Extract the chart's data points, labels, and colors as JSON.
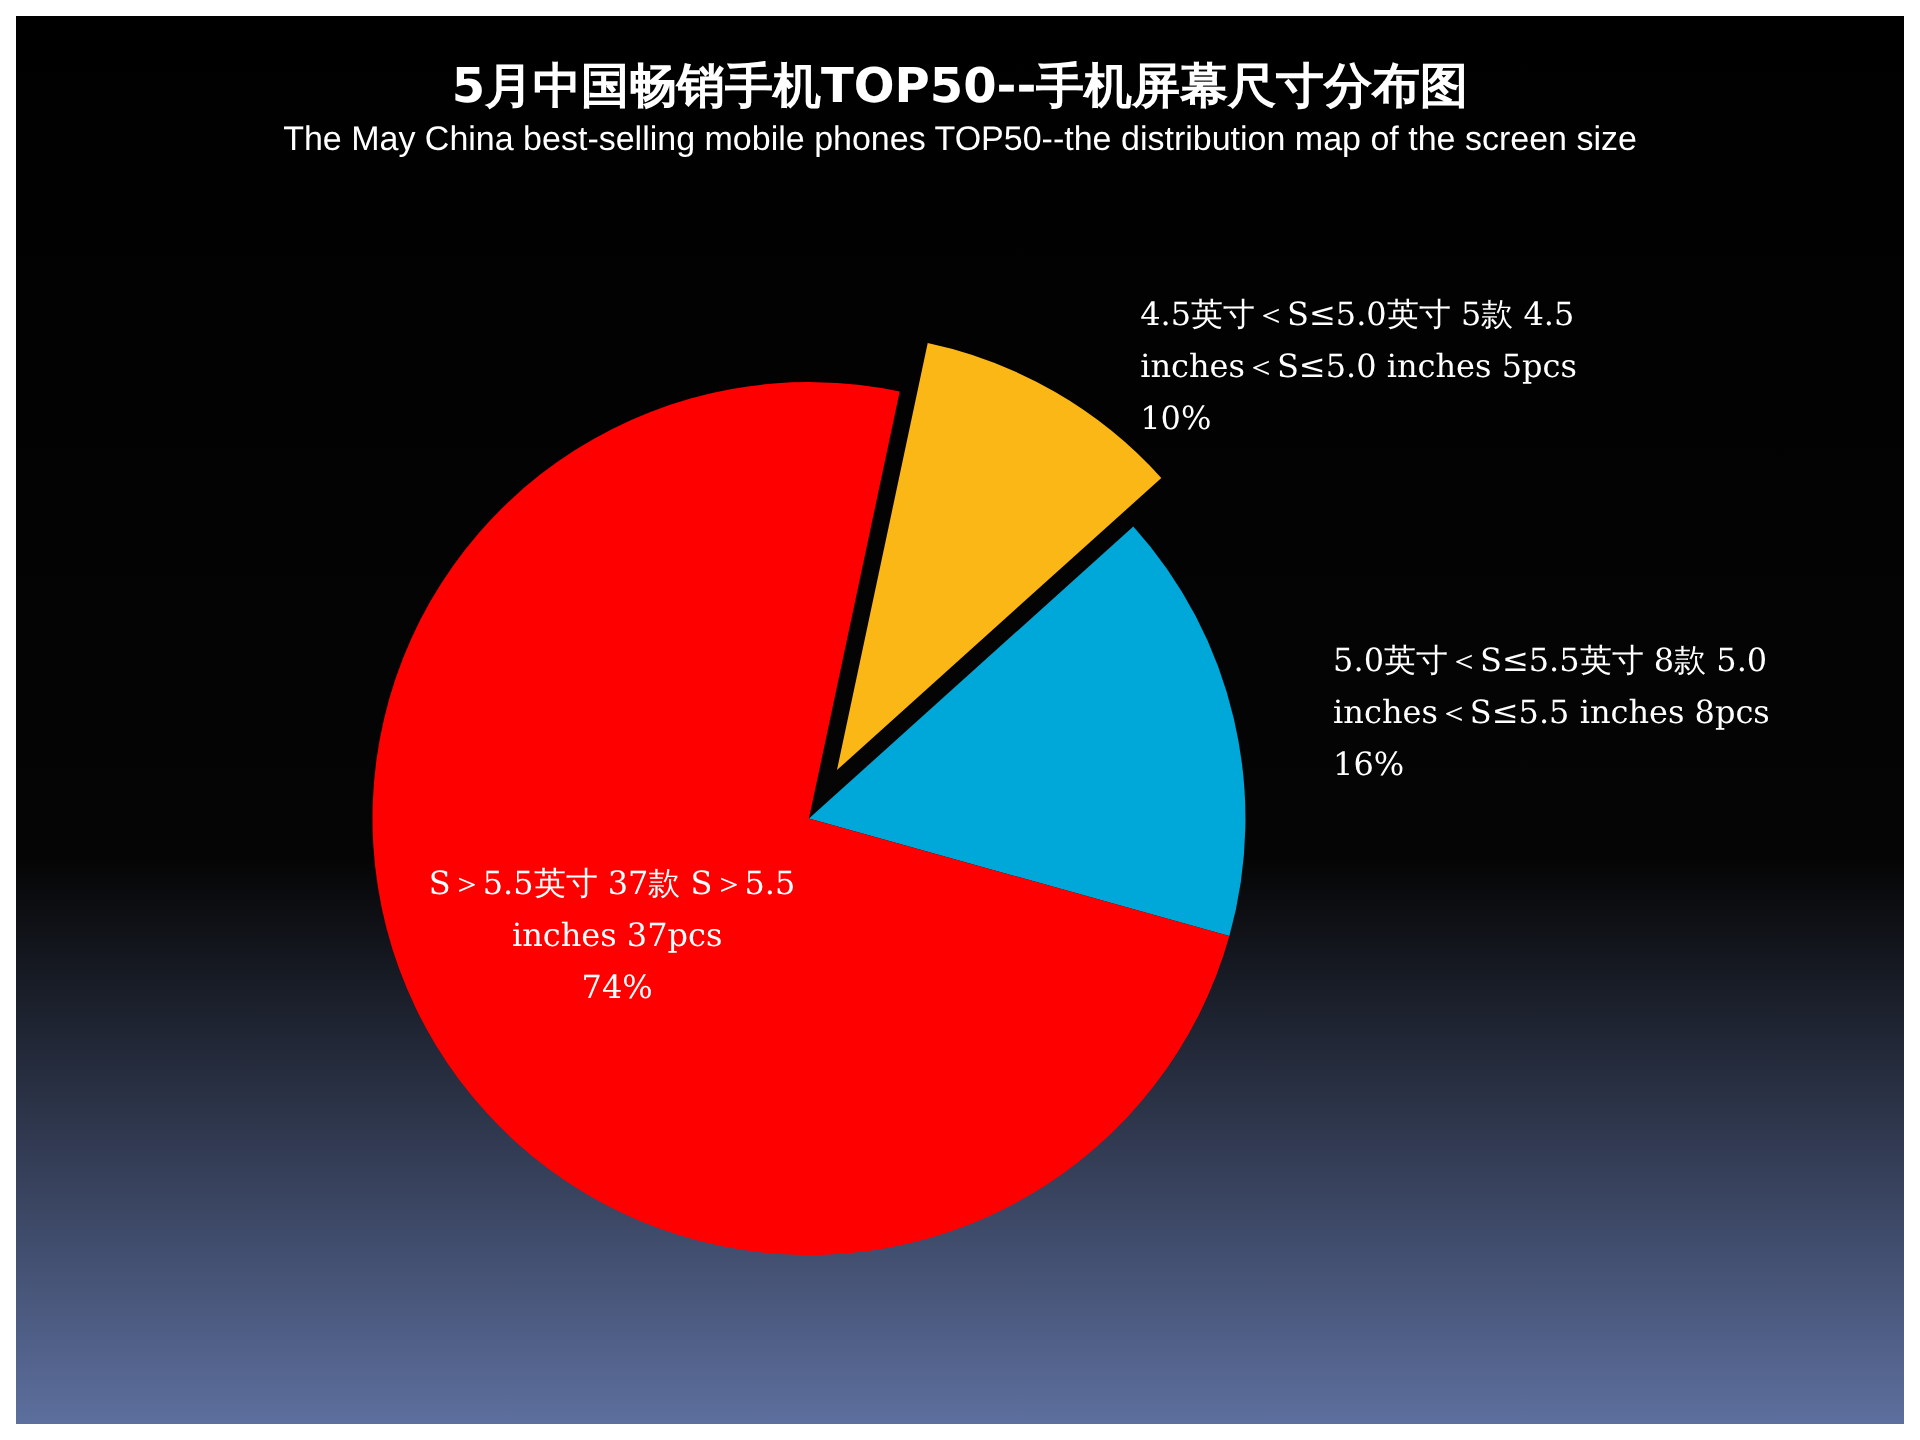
{
  "chart_data": {
    "type": "pie",
    "title": "5月中国畅销手机TOP50--手机屏幕尺寸分布图",
    "subtitle": "The May China best-selling mobile phones TOP50--the distribution map of the screen size",
    "categories": [
      "4.5英寸＜S≤5.0英寸 5款 4.5 inches＜S≤5.0 inches 5pcs",
      "5.0英寸＜S≤5.5英寸 8款 5.0 inches＜S≤5.5 inches 8pcs",
      "S＞5.5英寸 37款 S＞5.5 inches 37pcs"
    ],
    "values": [
      10,
      16,
      74
    ],
    "value_labels": [
      "10%",
      "16%",
      "74%"
    ],
    "colors": [
      "#fbb715",
      "#00a8d9",
      "#ff0000"
    ],
    "legend": false
  }
}
